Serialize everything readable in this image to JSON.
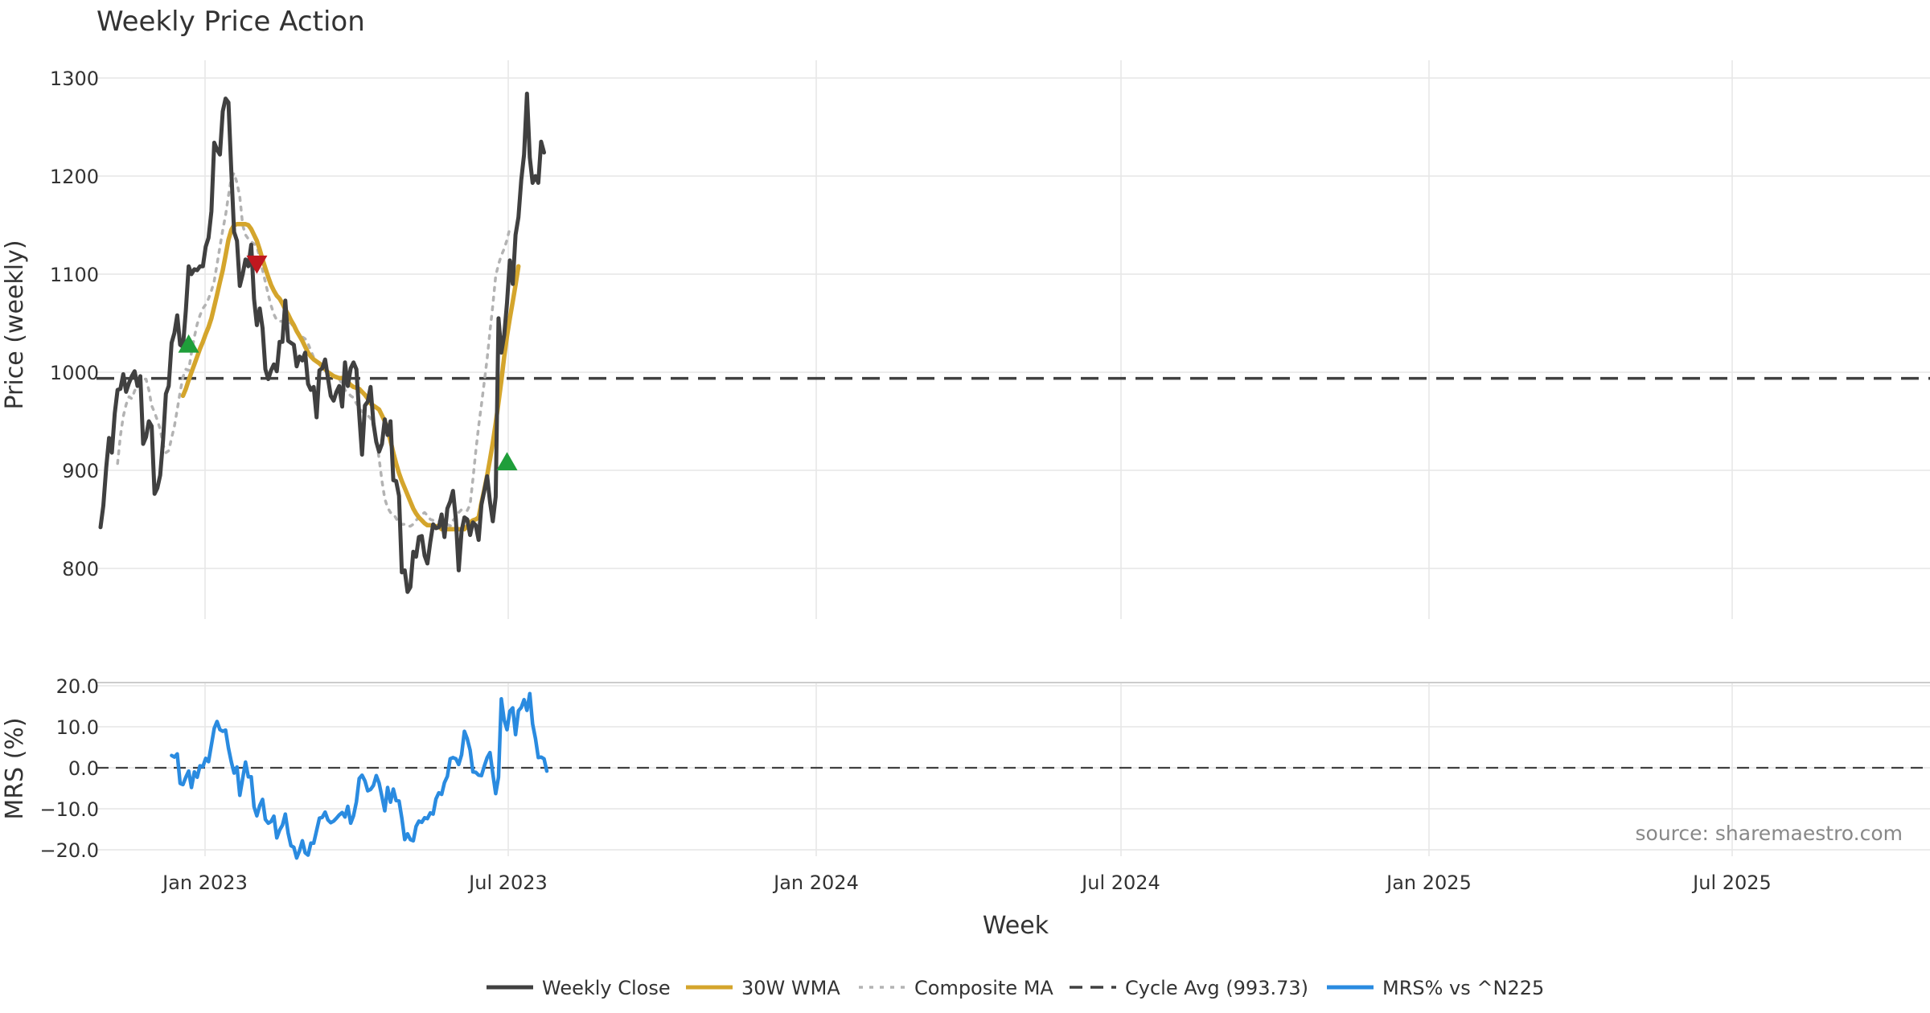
{
  "chart_data": {
    "title": "Weekly Price Action",
    "type": "line",
    "source_text": "source: sharemaestro.com",
    "xlabel": "Week",
    "x_ticks": [
      "Jan 2023",
      "Jul 2023",
      "Jan 2024",
      "Jul 2024",
      "Jan 2025",
      "Jul 2025"
    ],
    "price_panel": {
      "ylabel": "Price (weekly)",
      "ylim": [
        750,
        1310
      ],
      "y_ticks": [
        "800",
        "900",
        "1000",
        "1100",
        "1200",
        "1300"
      ],
      "cycle_avg": 993.73,
      "series": [
        {
          "name": "Weekly Close",
          "color": "#404040",
          "values": [
            842,
            864,
            903,
            933,
            918,
            958,
            982,
            983,
            998,
            980,
            989,
            996,
            1001,
            986,
            996,
            927,
            934,
            950,
            945,
            876,
            882,
            895,
            931,
            978,
            986,
            1030,
            1040,
            1058,
            1028,
            1026,
            1063,
            1108,
            1100,
            1105,
            1104,
            1108,
            1108,
            1128,
            1137,
            1164,
            1234,
            1227,
            1222,
            1266,
            1279,
            1275,
            1206,
            1143,
            1134,
            1088,
            1100,
            1115,
            1108,
            1130,
            1075,
            1048,
            1065,
            1045,
            1003,
            993,
            1002,
            1008,
            1001,
            1031,
            1031,
            1073,
            1032,
            1030,
            1028,
            1006,
            1016,
            1012,
            1020,
            988,
            982,
            985,
            954,
            1002,
            1004,
            1013,
            994,
            976,
            971,
            980,
            986,
            965,
            1010,
            986,
            1004,
            1010,
            1003,
            957,
            916,
            966,
            970,
            985,
            948,
            929,
            919,
            927,
            952,
            936,
            950,
            890,
            889,
            874,
            796,
            798,
            776,
            781,
            817,
            812,
            832,
            833,
            813,
            805,
            827,
            845,
            841,
            842,
            855,
            832,
            861,
            868,
            879,
            850,
            798,
            838,
            852,
            850,
            834,
            847,
            844,
            829,
            865,
            879,
            894,
            868,
            848,
            873,
            1055,
            1020,
            1038,
            1071,
            1114,
            1090,
            1140,
            1158,
            1196,
            1222,
            1284,
            1219,
            1193,
            1200,
            1193,
            1235,
            1224
          ]
        },
        {
          "name": "30W WMA",
          "color": "#d4a52c",
          "start_index": 29,
          "values": [
            976,
            983,
            992,
            1000,
            1008,
            1016,
            1024,
            1031,
            1039,
            1046,
            1055,
            1067,
            1079,
            1092,
            1104,
            1119,
            1135,
            1145,
            1150,
            1151,
            1151,
            1151,
            1151,
            1150,
            1146,
            1140,
            1134,
            1125,
            1115,
            1106,
            1097,
            1089,
            1083,
            1078,
            1075,
            1070,
            1064,
            1059,
            1053,
            1048,
            1042,
            1037,
            1032,
            1026,
            1020,
            1016,
            1013,
            1011,
            1009,
            1006,
            1003,
            1000,
            998,
            996,
            995,
            994,
            994,
            993,
            990,
            987,
            985,
            984,
            983,
            980,
            977,
            973,
            968,
            966,
            964,
            962,
            956,
            950,
            942,
            930,
            918,
            907,
            897,
            889,
            882,
            875,
            868,
            861,
            856,
            852,
            849,
            846,
            844,
            844,
            843,
            843,
            843,
            840,
            840,
            840,
            840,
            840,
            840,
            840,
            840,
            840,
            843,
            847,
            849,
            850,
            852,
            867,
            880,
            895,
            911,
            928,
            948,
            969,
            991,
            1016,
            1037,
            1055,
            1072,
            1089,
            1108
          ]
        },
        {
          "name": "Composite MA",
          "color": "#b3b3b3",
          "start_index": 6,
          "values": [
            907,
            935,
            955,
            967,
            975,
            973,
            981,
            987,
            990,
            993,
            993,
            982,
            966,
            959,
            951,
            942,
            926,
            918,
            920,
            933,
            945,
            962,
            980,
            995,
            1003,
            1002,
            1020,
            1036,
            1049,
            1058,
            1065,
            1069,
            1075,
            1083,
            1093,
            1110,
            1128,
            1145,
            1160,
            1180,
            1198,
            1203,
            1193,
            1179,
            1150,
            1140,
            1136,
            1133,
            1131,
            1128,
            1117,
            1104,
            1092,
            1079,
            1068,
            1059,
            1053,
            1052,
            1052,
            1052,
            1051,
            1050,
            1046,
            1042,
            1039,
            1036,
            1034,
            1029,
            1022,
            1015,
            1010,
            1008,
            1006,
            1003,
            1001,
            998,
            997,
            996,
            993,
            988,
            982,
            979,
            976,
            974,
            968,
            964,
            960,
            958,
            956,
            953,
            945,
            932,
            912,
            889,
            871,
            862,
            857,
            856,
            851,
            846,
            845,
            845,
            843,
            843,
            845,
            849,
            852,
            855,
            857,
            854,
            850,
            849,
            848,
            848,
            848,
            847,
            845,
            843,
            849,
            852,
            857,
            860,
            860,
            859,
            865,
            891,
            919,
            945,
            967,
            990,
            1014,
            1042,
            1068,
            1098,
            1110,
            1119,
            1126,
            1135,
            1147
          ]
        }
      ],
      "markers": [
        {
          "type": "buy",
          "index": 31,
          "value": 1028,
          "color": "#1f9e3a"
        },
        {
          "type": "sell",
          "index": 55,
          "value": 1111,
          "color": "#c0171f"
        },
        {
          "type": "buy",
          "index": 143,
          "value": 908,
          "color": "#1f9e3a"
        }
      ]
    },
    "mrs_panel": {
      "ylabel": "MRS (%)",
      "ylim": [
        -22,
        22
      ],
      "y_ticks": [
        "−20.0",
        "−10.0",
        "0.0",
        "10.0",
        "20.0"
      ],
      "zero_line": 0,
      "series": [
        {
          "name": "MRS% vs ^N225",
          "color": "#2a8be0",
          "start_index": 25,
          "values": [
            3.0,
            2.6,
            3.4,
            -3.8,
            -4.1,
            -2.3,
            -0.8,
            -4.8,
            -1.0,
            -2.3,
            0.5,
            0.3,
            2.3,
            1.5,
            5.6,
            9.6,
            11.3,
            9.3,
            8.9,
            9.2,
            4.8,
            1.5,
            -1.3,
            0.2,
            -6.7,
            -2.6,
            1.4,
            -2.2,
            -2.2,
            -9.5,
            -11.7,
            -9.2,
            -7.7,
            -12.6,
            -13.5,
            -13.1,
            -11.8,
            -17.1,
            -15.2,
            -14.0,
            -11.3,
            -15.9,
            -19.0,
            -19.4,
            -22.0,
            -20.2,
            -17.8,
            -20.7,
            -21.3,
            -18.4,
            -18.4,
            -15.3,
            -12.3,
            -12.1,
            -10.8,
            -12.7,
            -13.4,
            -13.0,
            -12.3,
            -11.5,
            -10.9,
            -12.0,
            -9.4,
            -13.5,
            -11.7,
            -8.3,
            -2.6,
            -1.8,
            -3.2,
            -5.6,
            -5.3,
            -4.3,
            -1.9,
            -3.7,
            -7.1,
            -10.5,
            -4.8,
            -8.4,
            -5.2,
            -8.0,
            -8.1,
            -12.3,
            -17.5,
            -16.1,
            -17.5,
            -17.8,
            -14.3,
            -13.0,
            -13.3,
            -12.2,
            -12.4,
            -11.0,
            -11.3,
            -7.6,
            -6.1,
            -6.5,
            -3.6,
            -2.1,
            2.2,
            2.5,
            2.2,
            0.8,
            3.2,
            8.9,
            7.1,
            4.3,
            -1.0,
            -1.1,
            -1.8,
            -1.9,
            0.4,
            2.5,
            3.7,
            -1.4,
            -6.3,
            -2.3,
            16.8,
            11.6,
            9.3,
            13.8,
            14.6,
            8.1,
            13.9,
            14.7,
            16.6,
            14.0,
            18.1,
            10.7,
            7.1,
            2.5,
            2.6,
            2.2,
            -0.8
          ]
        }
      ]
    },
    "legend": [
      {
        "label": "Weekly Close",
        "color": "#404040",
        "style": "solid"
      },
      {
        "label": "30W WMA",
        "color": "#d4a52c",
        "style": "solid"
      },
      {
        "label": "Composite MA",
        "color": "#b3b3b3",
        "style": "dotted"
      },
      {
        "label": "Cycle Avg (993.73)",
        "color": "#404040",
        "style": "dashed"
      },
      {
        "label": "MRS% vs ^N225",
        "color": "#2a8be0",
        "style": "solid"
      }
    ]
  }
}
